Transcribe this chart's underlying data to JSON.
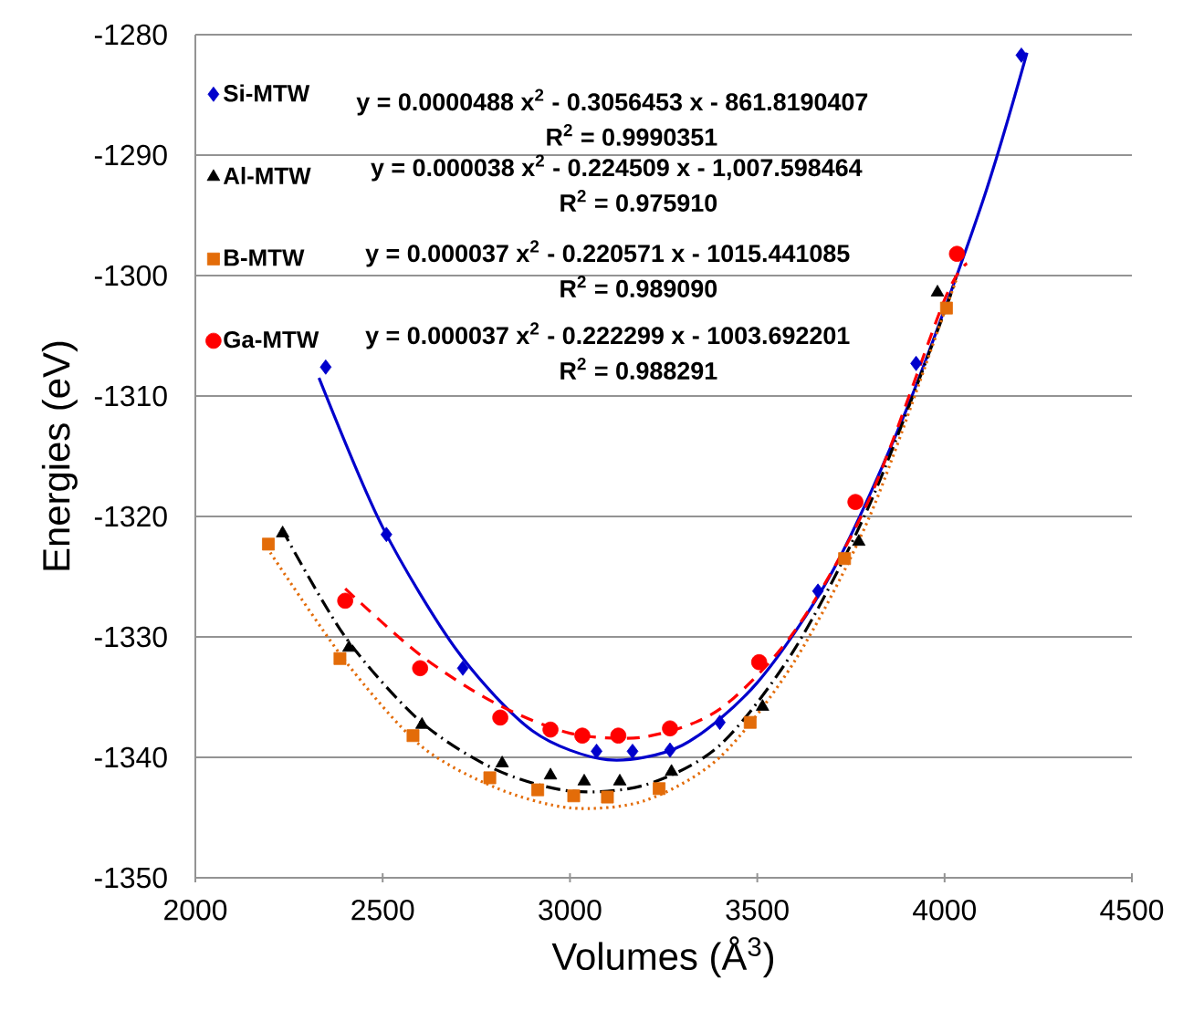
{
  "chart_data": {
    "type": "scatter",
    "xlabel": "Volumes (Å$^{3}$)",
    "ylabel": "Energies (eV)",
    "xlim": [
      2000,
      4500
    ],
    "xticks": [
      2000,
      2500,
      3000,
      3500,
      4000,
      4500
    ],
    "ylim": [
      -1350,
      -1280
    ],
    "yticks": [
      -1350,
      -1340,
      -1330,
      -1320,
      -1310,
      -1300,
      -1290,
      -1280
    ],
    "grid": "y",
    "legend": "top left",
    "series": [
      {
        "name": "Si-MTW",
        "marker": "diamond",
        "color": "#0000cc",
        "x": [
          2348,
          2510,
          2714,
          3071,
          3167,
          3267,
          3400,
          3662,
          3924,
          4205
        ],
        "values": [
          -1307.6,
          -1321.5,
          -1332.6,
          -1339.5,
          -1339.5,
          -1339.4,
          -1337.1,
          -1326.2,
          -1307.3,
          -1281.7
        ]
      },
      {
        "name": "Al-MTW",
        "marker": "triangle",
        "color": "#000000",
        "x": [
          2233,
          2410,
          2605,
          2819,
          2948,
          3038,
          3133,
          3271,
          3514,
          3771,
          3981
        ],
        "values": [
          -1321.4,
          -1330.9,
          -1337.3,
          -1340.5,
          -1341.5,
          -1342.0,
          -1342.0,
          -1341.2,
          -1335.8,
          -1322.1,
          -1301.4
        ]
      },
      {
        "name": "B-MTW",
        "marker": "square",
        "color": "#e36c09",
        "x": [
          2195,
          2386,
          2581,
          2786,
          2914,
          3010,
          3100,
          3238,
          3481,
          3733,
          4005
        ],
        "values": [
          -1322.3,
          -1331.8,
          -1338.2,
          -1341.7,
          -1342.7,
          -1343.2,
          -1343.3,
          -1342.6,
          -1337.1,
          -1323.5,
          -1302.7
        ]
      },
      {
        "name": "Ga-MTW",
        "marker": "circle",
        "color": "#ff0000",
        "x": [
          2400,
          2600,
          2814,
          2948,
          3033,
          3129,
          3267,
          3505,
          3762,
          4033
        ],
        "values": [
          -1327.0,
          -1332.6,
          -1336.7,
          -1337.7,
          -1338.2,
          -1338.2,
          -1337.6,
          -1332.1,
          -1318.8,
          -1298.2
        ]
      },
      {
        "type": "line",
        "marker": "none",
        "line_style": "solid",
        "color": "#0000cc",
        "x": [
          2330,
          2500,
          2700,
          2900,
          3100,
          3300,
          3500,
          3700,
          3900,
          4100,
          4220
        ],
        "values": [
          -1308.5,
          -1320.9,
          -1331.2,
          -1337.8,
          -1340.2,
          -1339.0,
          -1333.8,
          -1324.6,
          -1311.0,
          -1294.0,
          -1281.5
        ]
      },
      {
        "type": "line",
        "marker": "none",
        "line_style": "dashdot",
        "color": "#000000",
        "x": [
          2230,
          2400,
          2600,
          2800,
          3000,
          3200,
          3400,
          3600,
          3800,
          4000,
          4030
        ],
        "values": [
          -1321.0,
          -1330.0,
          -1337.0,
          -1341.0,
          -1342.8,
          -1342.3,
          -1339.0,
          -1331.0,
          -1319.0,
          -1303.0,
          -1300.0
        ]
      },
      {
        "type": "line",
        "marker": "none",
        "line_style": "dotted",
        "color": "#e36c09",
        "x": [
          2200,
          2400,
          2600,
          2800,
          3000,
          3200,
          3400,
          3600,
          3800,
          4000,
          4030
        ],
        "values": [
          -1323.0,
          -1332.0,
          -1339.0,
          -1342.5,
          -1344.2,
          -1343.6,
          -1340.0,
          -1332.0,
          -1320.0,
          -1303.0,
          -1300.5
        ]
      },
      {
        "type": "line",
        "marker": "none",
        "line_style": "dashed",
        "color": "#ff0000",
        "x": [
          2400,
          2600,
          2800,
          3000,
          3200,
          3400,
          3600,
          3800,
          4000,
          4060
        ],
        "values": [
          -1326.0,
          -1331.5,
          -1335.5,
          -1338.0,
          -1338.3,
          -1336.0,
          -1329.5,
          -1318.5,
          -1302.0,
          -1299.0
        ]
      }
    ],
    "annotations": [
      "y = 0.0000488 x$^{2}$ - 0.3056453 x - 861.8190407",
      "R$^{2}$ = 0.9990351",
      "y = 0.000038 x$^{2}$ - 0.224509 x - 1,007.598464",
      "R$^{2}$ = 0.975910",
      "y = 0.000037 x$^{2}$ - 0.220571 x - 1015.441085",
      "R$^{2}$ = 0.989090",
      "y = 0.000037 x$^{2}$ - 0.222299 x - 1003.692201",
      "R$^{2}$ = 0.988291"
    ]
  }
}
